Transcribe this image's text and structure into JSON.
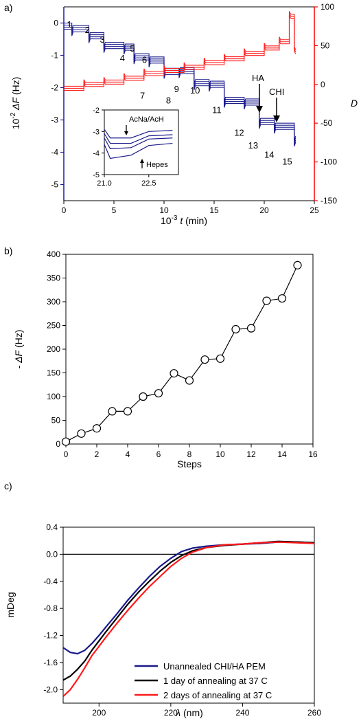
{
  "colors": {
    "blue": "#1a1a8c",
    "red": "#ff1a1a",
    "black": "#000000",
    "axis_left_blue": "#1a1aa0",
    "axis_right_red": "#ff0000"
  },
  "chart_data": [
    {
      "panel_label": "a)",
      "type": "line",
      "xlabel_prefix": "10",
      "xlabel_exp": "-3",
      "xlabel_var": "t",
      "xlabel_unit": "(min)",
      "ylabel_prefix": "10",
      "ylabel_exp": "-2",
      "ylabel_var": "ΔF",
      "ylabel_unit": "(Hz)",
      "y2label": "D",
      "xlim": [
        0,
        25
      ],
      "ylim": [
        -5.5,
        0.5
      ],
      "y2lim": [
        -150,
        100
      ],
      "x_ticks": [
        "0",
        "5",
        "10",
        "15",
        "20",
        "25"
      ],
      "y_ticks": [
        "0",
        "-1",
        "-2",
        "-3",
        "-4",
        "-5"
      ],
      "y2_ticks": [
        "100",
        "50",
        "0",
        "-50",
        "-100",
        "-150"
      ],
      "step_labels": [
        "1",
        "2",
        "3",
        "4",
        "5",
        "6",
        "7",
        "8",
        "9",
        "10",
        "11",
        "12",
        "13",
        "14",
        "15"
      ],
      "annotations": [
        "HA",
        "CHI"
      ],
      "series": [
        {
          "axis": "left",
          "color": "blue",
          "steps": [
            {
              "x": 0.0,
              "y": 0.0
            },
            {
              "x": 0.8,
              "y": -0.08
            },
            {
              "x": 2.5,
              "y": -0.3
            },
            {
              "x": 4.0,
              "y": -0.6
            },
            {
              "x": 6.0,
              "y": -0.65
            },
            {
              "x": 7.0,
              "y": -0.95
            },
            {
              "x": 8.5,
              "y": -1.05
            },
            {
              "x": 10.0,
              "y": -1.4
            },
            {
              "x": 11.5,
              "y": -1.38
            },
            {
              "x": 13.0,
              "y": -1.75
            },
            {
              "x": 14.5,
              "y": -1.8
            },
            {
              "x": 16.0,
              "y": -2.3
            },
            {
              "x": 18.0,
              "y": -2.35
            },
            {
              "x": 19.5,
              "y": -2.95
            },
            {
              "x": 21.0,
              "y": -3.1
            },
            {
              "x": 23.0,
              "y": -3.5
            }
          ]
        },
        {
          "axis": "right",
          "color": "red",
          "steps": [
            {
              "x": 0.0,
              "y": -5
            },
            {
              "x": 2.0,
              "y": 0
            },
            {
              "x": 4.0,
              "y": 3
            },
            {
              "x": 6.0,
              "y": 8
            },
            {
              "x": 8.0,
              "y": 14
            },
            {
              "x": 10.0,
              "y": 18
            },
            {
              "x": 12.0,
              "y": 22
            },
            {
              "x": 14.0,
              "y": 28
            },
            {
              "x": 16.0,
              "y": 33
            },
            {
              "x": 18.0,
              "y": 40
            },
            {
              "x": 20.0,
              "y": 47
            },
            {
              "x": 21.5,
              "y": 55
            },
            {
              "x": 22.5,
              "y": 88
            },
            {
              "x": 23.0,
              "y": 42
            }
          ]
        }
      ],
      "inset": {
        "xlim": [
          21.0,
          23.5
        ],
        "ylim": [
          -5,
          -2
        ],
        "x_ticks": [
          "21.0",
          "22.5"
        ],
        "y_ticks": [
          "-2",
          "-3",
          "-4",
          "-5"
        ],
        "annotations": [
          "AcNa/AcH",
          "Hepes"
        ],
        "traces": [
          [
            {
              "x": 21.0,
              "y": -2.9
            },
            {
              "x": 21.2,
              "y": -3.3
            },
            {
              "x": 21.9,
              "y": -3.3
            },
            {
              "x": 22.5,
              "y": -3.0
            },
            {
              "x": 23.3,
              "y": -2.95
            }
          ],
          [
            {
              "x": 21.0,
              "y": -3.1
            },
            {
              "x": 21.2,
              "y": -3.55
            },
            {
              "x": 21.9,
              "y": -3.55
            },
            {
              "x": 22.5,
              "y": -3.2
            },
            {
              "x": 23.3,
              "y": -3.15
            }
          ],
          [
            {
              "x": 21.0,
              "y": -3.3
            },
            {
              "x": 21.2,
              "y": -3.8
            },
            {
              "x": 21.9,
              "y": -3.75
            },
            {
              "x": 22.5,
              "y": -3.35
            },
            {
              "x": 23.3,
              "y": -3.3
            }
          ],
          [
            {
              "x": 21.0,
              "y": -3.6
            },
            {
              "x": 21.2,
              "y": -4.25
            },
            {
              "x": 21.9,
              "y": -4.1
            },
            {
              "x": 22.5,
              "y": -3.65
            },
            {
              "x": 23.3,
              "y": -3.55
            }
          ]
        ]
      }
    },
    {
      "panel_label": "b)",
      "type": "line",
      "xlabel": "Steps",
      "ylabel_prefix": "-",
      "ylabel_var": "ΔF",
      "ylabel_unit": "(Hz)",
      "xlim": [
        0,
        16
      ],
      "ylim": [
        0,
        400
      ],
      "x_ticks": [
        "0",
        "2",
        "4",
        "6",
        "8",
        "10",
        "12",
        "14",
        "16"
      ],
      "y_ticks": [
        "0",
        "50",
        "100",
        "150",
        "200",
        "250",
        "300",
        "350",
        "400"
      ],
      "x": [
        0,
        1,
        2,
        3,
        4,
        5,
        6,
        7,
        8,
        9,
        10,
        11,
        12,
        13,
        14,
        15
      ],
      "values": [
        5,
        22,
        33,
        69,
        69,
        100,
        107,
        149,
        134,
        178,
        180,
        242,
        244,
        302,
        307,
        377
      ]
    },
    {
      "panel_label": "c)",
      "type": "line",
      "xlabel_var": "λ",
      "xlabel_unit": "(nm)",
      "ylabel": "mDeg",
      "xlim": [
        190,
        260
      ],
      "ylim": [
        -2.2,
        0.4
      ],
      "x_ticks": [
        "200",
        "220",
        "240",
        "260"
      ],
      "y_ticks": [
        "0.4",
        "0.0",
        "-0.4",
        "-0.8",
        "-1.2",
        "-1.6",
        "-2.0"
      ],
      "legend_position": "bottom-right",
      "series": [
        {
          "name": "Unannealed CHI/HA PEM",
          "color": "blue",
          "x": [
            190,
            192,
            194,
            196,
            198,
            200,
            202,
            205,
            208,
            211,
            214,
            217,
            220,
            223,
            226,
            230,
            235,
            240,
            245,
            250,
            255,
            260
          ],
          "y": [
            -1.38,
            -1.45,
            -1.47,
            -1.42,
            -1.32,
            -1.2,
            -1.07,
            -0.88,
            -0.68,
            -0.5,
            -0.33,
            -0.18,
            -0.06,
            0.04,
            0.09,
            0.12,
            0.14,
            0.15,
            0.16,
            0.18,
            0.18,
            0.17
          ]
        },
        {
          "name": "1 day of annealing at 37 C",
          "color": "black",
          "x": [
            190,
            192,
            194,
            196,
            198,
            200,
            202,
            205,
            208,
            211,
            214,
            217,
            220,
            223,
            226,
            230,
            235,
            240,
            245,
            250,
            255,
            260
          ],
          "y": [
            -1.86,
            -1.8,
            -1.7,
            -1.58,
            -1.42,
            -1.28,
            -1.14,
            -0.94,
            -0.74,
            -0.56,
            -0.4,
            -0.25,
            -0.12,
            -0.02,
            0.05,
            0.1,
            0.13,
            0.15,
            0.17,
            0.19,
            0.18,
            0.17
          ]
        },
        {
          "name": "2 days of annealing at 37 C",
          "color": "red",
          "x": [
            190,
            192,
            194,
            196,
            198,
            200,
            202,
            205,
            208,
            211,
            214,
            217,
            220,
            223,
            226,
            230,
            235,
            240,
            245,
            250,
            255,
            260
          ],
          "y": [
            -2.1,
            -2.0,
            -1.85,
            -1.68,
            -1.5,
            -1.36,
            -1.22,
            -1.02,
            -0.83,
            -0.65,
            -0.48,
            -0.33,
            -0.18,
            -0.06,
            0.03,
            0.1,
            0.14,
            0.15,
            0.17,
            0.18,
            0.17,
            0.16
          ]
        }
      ]
    }
  ]
}
